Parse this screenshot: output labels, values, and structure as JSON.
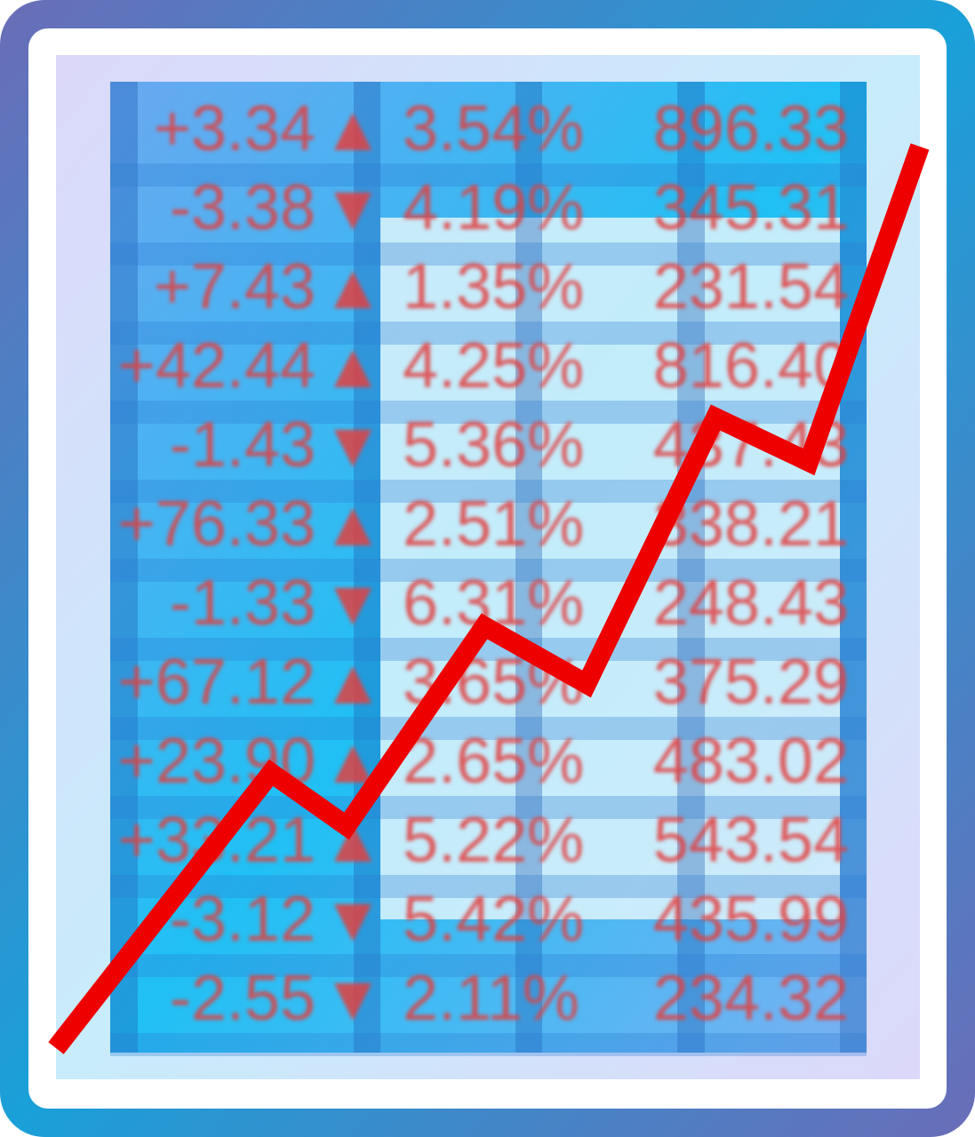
{
  "table": {
    "rows": [
      [
        "+3.34",
        "▲",
        "3.54%",
        "896.33"
      ],
      [
        "-3.38",
        "▼",
        "4.19%",
        "345.31"
      ],
      [
        "+7.43",
        "▲",
        "1.35%",
        "231.54"
      ],
      [
        "+42.44",
        "▲",
        "4.25%",
        "816.40"
      ],
      [
        "-1.43",
        "▼",
        "5.36%",
        "437.43"
      ],
      [
        "+76.33",
        "▲",
        "2.51%",
        "338.21"
      ],
      [
        "-1.33",
        "▼",
        "6.31%",
        "248.43"
      ],
      [
        "+67.12",
        "▲",
        "3.65%",
        "375.29"
      ],
      [
        "+23.90",
        "▲",
        "2.65%",
        "483.02"
      ],
      [
        "+33.21",
        "▲",
        "5.22%",
        "543.54"
      ],
      [
        "-3.12",
        "▼",
        "5.42%",
        "435.99"
      ],
      [
        "-2.55",
        "▼",
        "2.11%",
        "234.32"
      ]
    ]
  }
}
